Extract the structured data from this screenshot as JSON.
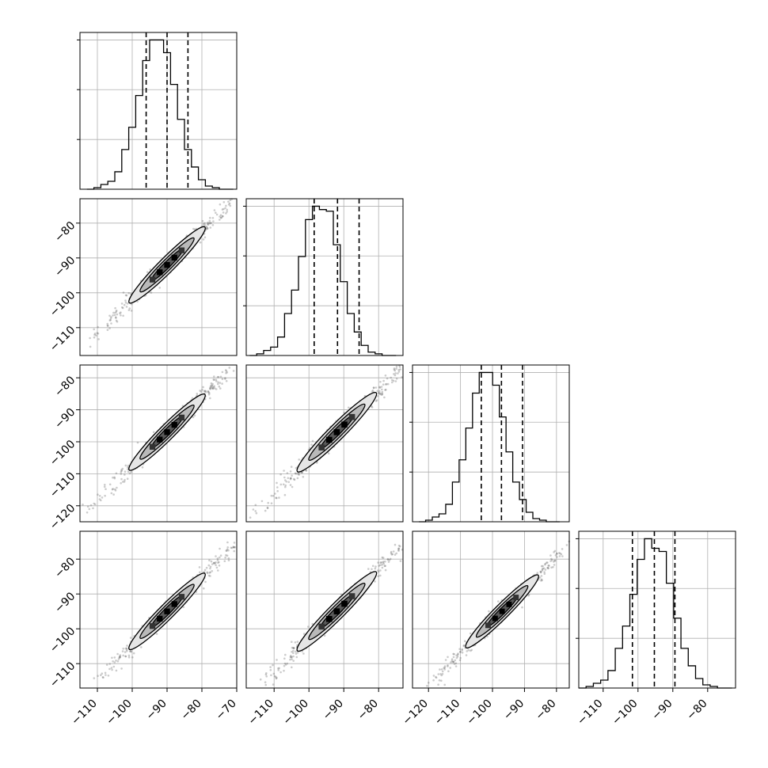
{
  "colors": {
    "foreground": "#000000",
    "grid": "#b0b0b0",
    "contour_fill_light": "#e6e6e6",
    "contour_fill_mid": "#b9b9b9",
    "contour_fill_dark": "#5a5a5a",
    "scatter": "#555555"
  },
  "chart_data": {
    "type": "corner",
    "title": "",
    "n_params": 4,
    "param_labels": [
      "",
      "",
      "",
      ""
    ],
    "grid": true,
    "quantile_lines": "dashed",
    "param_ranges": [
      [
        -115,
        -70
      ],
      [
        -118,
        -73
      ],
      [
        -125,
        -76
      ],
      [
        -117,
        -72
      ]
    ],
    "ticks": [
      {
        "values": [
          -110,
          -100,
          -90,
          -80,
          -70
        ],
        "labels": [
          "−110",
          "−100",
          "−90",
          "−80",
          "−70"
        ]
      },
      {
        "values": [
          -110,
          -100,
          -90,
          -80
        ],
        "labels": [
          "−110",
          "−100",
          "−90",
          "−80"
        ]
      },
      {
        "values": [
          -120,
          -110,
          -100,
          -90,
          -80
        ],
        "labels": [
          "−120",
          "−110",
          "−100",
          "−90",
          "−80"
        ]
      },
      {
        "values": [
          -110,
          -100,
          -90,
          -80
        ],
        "labels": [
          "−110",
          "−100",
          "−90",
          "−80"
        ]
      }
    ],
    "marginals": [
      {
        "param": 0,
        "quantiles": [
          -96,
          -90,
          -84
        ],
        "bins_range": [
          -113,
          -71
        ],
        "counts": [
          0,
          1,
          3,
          5,
          11,
          25,
          39,
          59,
          81,
          94,
          94,
          86,
          66,
          44,
          25,
          14,
          6,
          2,
          1,
          0,
          0
        ]
      },
      {
        "param": 1,
        "quantiles": [
          -98.5,
          -91.8,
          -85.6
        ],
        "bins_range": [
          -117,
          -75
        ],
        "counts": [
          0,
          1,
          3,
          5,
          11,
          25,
          39,
          59,
          81,
          89,
          87,
          86,
          66,
          44,
          25,
          14,
          6,
          2,
          1,
          0,
          0
        ]
      },
      {
        "param": 2,
        "quantiles": [
          -103.5,
          -97.2,
          -90.6
        ],
        "bins_range": [
          -123,
          -79
        ],
        "counts": [
          0,
          1,
          3,
          5,
          11,
          25,
          39,
          59,
          81,
          94,
          94,
          86,
          66,
          44,
          25,
          14,
          6,
          2,
          1,
          0,
          0
        ]
      },
      {
        "param": 3,
        "quantiles": [
          -101.6,
          -95.3,
          -89.4
        ],
        "bins_range": [
          -117,
          -73
        ],
        "counts": [
          0,
          1,
          3,
          5,
          11,
          25,
          39,
          59,
          81,
          94,
          88,
          86,
          66,
          44,
          25,
          14,
          6,
          2,
          1,
          0,
          0
        ]
      }
    ],
    "pairs": [
      {
        "x": 0,
        "y": 1,
        "center": [
          -90,
          -92
        ],
        "sx": 7.5,
        "sy": 7.8
      },
      {
        "x": 0,
        "y": 2,
        "center": [
          -90,
          -97
        ],
        "sx": 7.5,
        "sy": 7.8
      },
      {
        "x": 1,
        "y": 2,
        "center": [
          -92,
          -97
        ],
        "sx": 7.8,
        "sy": 7.8
      },
      {
        "x": 0,
        "y": 3,
        "center": [
          -90,
          -95
        ],
        "sx": 7.5,
        "sy": 7.5
      },
      {
        "x": 1,
        "y": 3,
        "center": [
          -92,
          -95
        ],
        "sx": 7.8,
        "sy": 7.5
      },
      {
        "x": 2,
        "y": 3,
        "center": [
          -97,
          -95
        ],
        "sx": 7.8,
        "sy": 7.5
      }
    ]
  }
}
